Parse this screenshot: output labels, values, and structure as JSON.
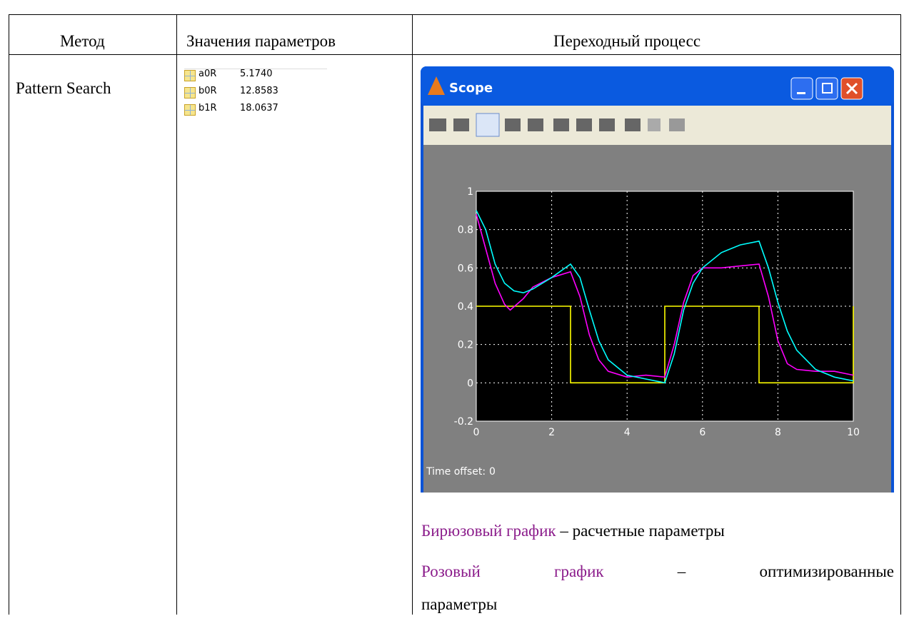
{
  "table": {
    "headers": [
      "Метод",
      "Значения параметров",
      "Переходный процесс"
    ],
    "method": "Pattern Search",
    "parameters": [
      {
        "name": "a0R",
        "value": "5.1740"
      },
      {
        "name": "b0R",
        "value": "12.8583"
      },
      {
        "name": "b1R",
        "value": "18.0637"
      }
    ]
  },
  "scope": {
    "title": "Scope",
    "time_offset_label": "Time offset:",
    "time_offset": 0
  },
  "chart_data": {
    "type": "line",
    "xlim": [
      0,
      10
    ],
    "ylim": [
      -0.2,
      1
    ],
    "xticks": [
      0,
      2,
      4,
      6,
      8,
      10
    ],
    "yticks": [
      -0.2,
      0,
      0.2,
      0.4,
      0.6,
      0.8,
      1
    ],
    "grid": true,
    "series": [
      {
        "color": "#ffff00",
        "x": [
          0,
          2.5,
          2.5,
          5,
          5,
          7.5,
          7.5,
          10,
          10
        ],
        "values": [
          0.4,
          0.4,
          0,
          0,
          0.4,
          0.4,
          0,
          0,
          0.4
        ]
      },
      {
        "color": "#ff00ff",
        "x": [
          0,
          0.25,
          0.5,
          0.75,
          0.9,
          1.25,
          1.5,
          2,
          2.5,
          2.75,
          3,
          3.25,
          3.5,
          4,
          4.5,
          5,
          5.25,
          5.5,
          5.75,
          6,
          6.5,
          7,
          7.5,
          7.75,
          8,
          8.25,
          8.5,
          9,
          9.5,
          10
        ],
        "values": [
          0.88,
          0.7,
          0.52,
          0.41,
          0.38,
          0.44,
          0.5,
          0.55,
          0.58,
          0.45,
          0.25,
          0.12,
          0.06,
          0.03,
          0.04,
          0.03,
          0.2,
          0.42,
          0.56,
          0.6,
          0.6,
          0.61,
          0.62,
          0.45,
          0.22,
          0.1,
          0.07,
          0.06,
          0.06,
          0.04
        ]
      },
      {
        "color": "#00ffff",
        "x": [
          0,
          0.25,
          0.5,
          0.75,
          1,
          1.25,
          1.5,
          2,
          2.5,
          2.75,
          3,
          3.25,
          3.5,
          4,
          4.5,
          5,
          5.25,
          5.5,
          5.75,
          6,
          6.5,
          7,
          7.5,
          7.75,
          8,
          8.25,
          8.5,
          9,
          9.5,
          10
        ],
        "values": [
          0.9,
          0.8,
          0.62,
          0.52,
          0.48,
          0.47,
          0.49,
          0.55,
          0.62,
          0.55,
          0.38,
          0.22,
          0.12,
          0.04,
          0.02,
          0,
          0.15,
          0.38,
          0.52,
          0.6,
          0.68,
          0.72,
          0.74,
          0.6,
          0.42,
          0.27,
          0.17,
          0.07,
          0.03,
          0.01
        ]
      }
    ]
  },
  "captions": [
    {
      "color_name": "Бирюзовый график",
      "text": "– расчетные  параметры"
    },
    {
      "color_name": "Розовый график",
      "text": "– оптимизированные параметры"
    }
  ]
}
